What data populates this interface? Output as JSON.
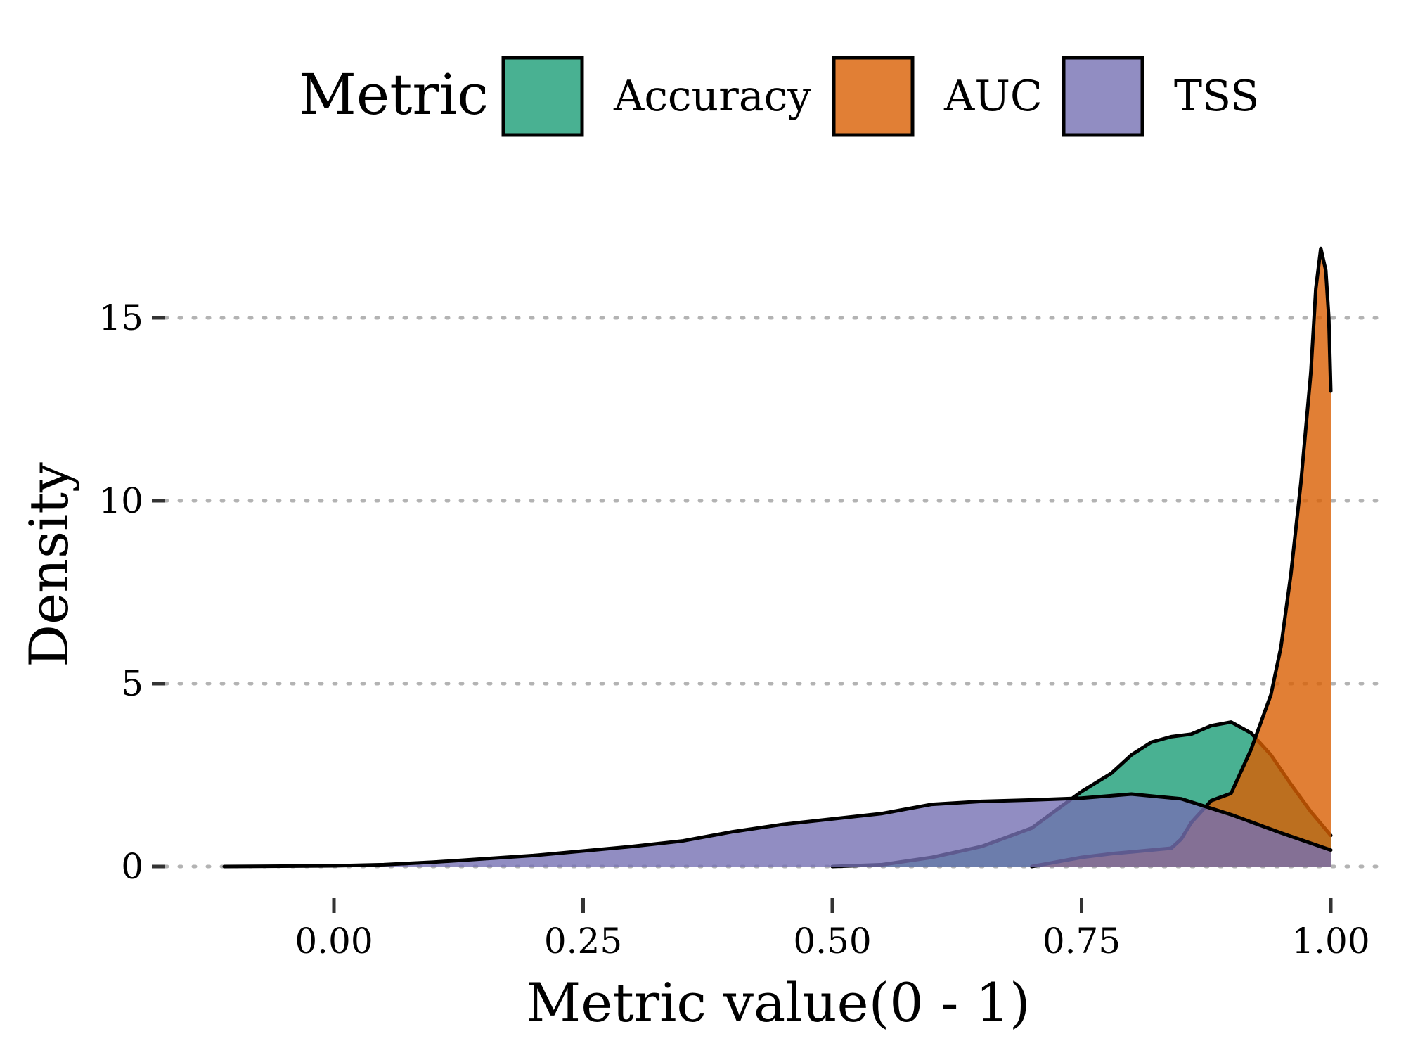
{
  "chart_data": {
    "type": "area",
    "subtype": "density",
    "title": "",
    "xlabel": "Metric value(0 - 1)",
    "ylabel": "Density",
    "xlim": [
      -0.16,
      1.05
    ],
    "ylim": [
      0,
      17.2
    ],
    "x_ticks": [
      0.0,
      0.25,
      0.5,
      0.75,
      1.0
    ],
    "x_tick_labels": [
      "0.00",
      "0.25",
      "0.50",
      "0.75",
      "1.00"
    ],
    "y_ticks": [
      0,
      5,
      10,
      15
    ],
    "y_tick_labels": [
      "0",
      "5",
      "10",
      "15"
    ],
    "grid": "horizontal dotted major gridlines",
    "legend": {
      "title": "Metric",
      "position": "top",
      "entries": [
        "Accuracy",
        "AUC",
        "TSS"
      ]
    },
    "series": [
      {
        "name": "Accuracy",
        "color": "#1b9e77",
        "fill_opacity": 0.8,
        "x": [
          0.5,
          0.55,
          0.6,
          0.65,
          0.7,
          0.73,
          0.75,
          0.78,
          0.8,
          0.82,
          0.84,
          0.86,
          0.88,
          0.9,
          0.92,
          0.94,
          0.96,
          0.98,
          1.0
        ],
        "y": [
          0.0,
          0.05,
          0.25,
          0.55,
          1.05,
          1.65,
          2.05,
          2.55,
          3.05,
          3.4,
          3.55,
          3.62,
          3.85,
          3.95,
          3.65,
          3.05,
          2.25,
          1.5,
          0.85
        ]
      },
      {
        "name": "AUC",
        "color": "#d95f02",
        "fill_opacity": 0.8,
        "x": [
          0.7,
          0.72,
          0.75,
          0.78,
          0.8,
          0.82,
          0.84,
          0.85,
          0.86,
          0.88,
          0.9,
          0.92,
          0.94,
          0.95,
          0.96,
          0.97,
          0.98,
          0.985,
          0.99,
          0.995,
          0.998,
          1.0
        ],
        "y": [
          0.0,
          0.1,
          0.25,
          0.35,
          0.4,
          0.45,
          0.5,
          0.75,
          1.2,
          1.8,
          2.0,
          3.2,
          4.7,
          6.0,
          8.0,
          10.5,
          13.5,
          15.8,
          16.9,
          16.3,
          15.0,
          13.0
        ]
      },
      {
        "name": "TSS",
        "color": "#7570b3",
        "fill_opacity": 0.8,
        "x": [
          -0.11,
          0.0,
          0.05,
          0.1,
          0.2,
          0.3,
          0.35,
          0.4,
          0.45,
          0.5,
          0.55,
          0.6,
          0.65,
          0.7,
          0.75,
          0.8,
          0.85,
          0.9,
          0.95,
          1.0
        ],
        "y": [
          0.0,
          0.02,
          0.05,
          0.12,
          0.3,
          0.55,
          0.7,
          0.95,
          1.15,
          1.3,
          1.45,
          1.7,
          1.78,
          1.82,
          1.87,
          1.98,
          1.85,
          1.42,
          0.92,
          0.45
        ]
      }
    ]
  }
}
